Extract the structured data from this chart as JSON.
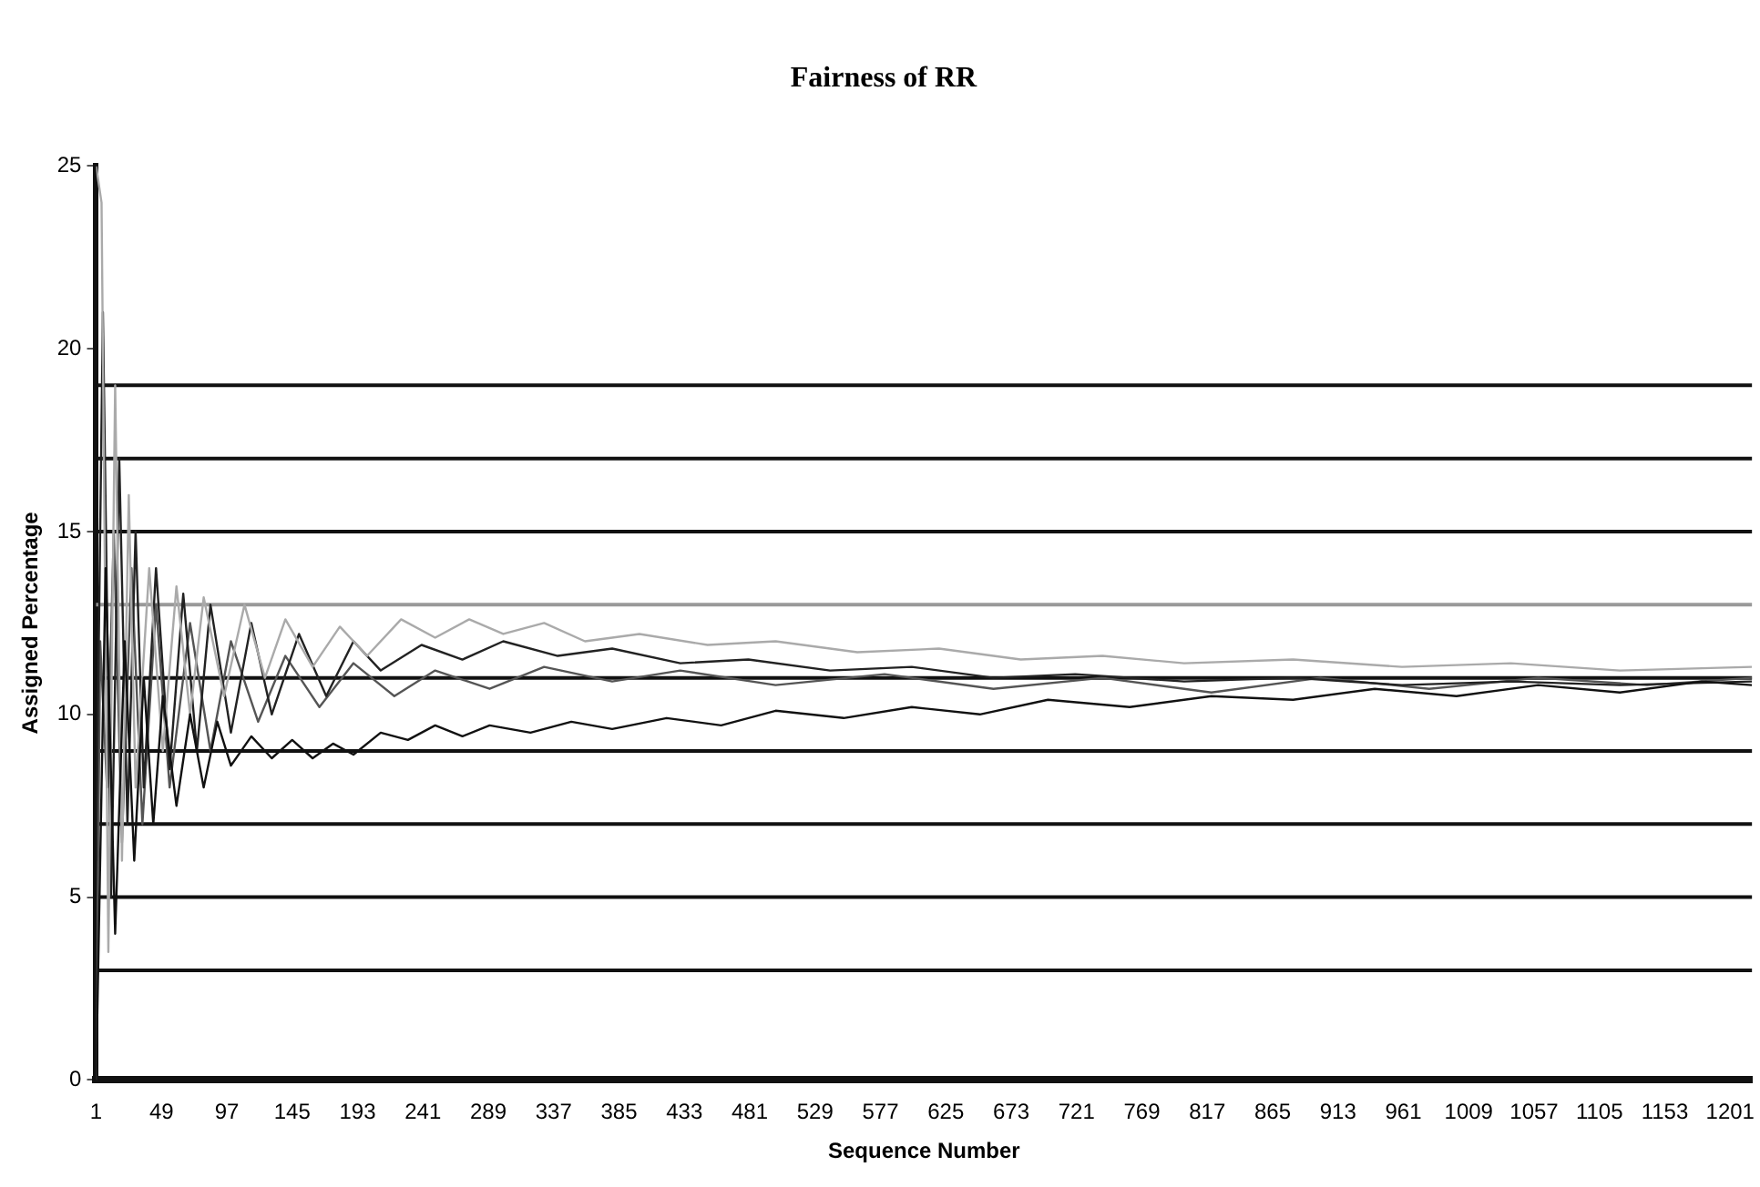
{
  "chart_data": {
    "type": "line",
    "title": "Fairness of RR",
    "xlabel": "Sequence Number",
    "ylabel": "Assigned Percentage",
    "xlim": [
      1,
      1217
    ],
    "xticks": [
      1,
      49,
      97,
      145,
      193,
      241,
      289,
      337,
      385,
      433,
      481,
      529,
      577,
      625,
      673,
      721,
      769,
      817,
      865,
      913,
      961,
      1009,
      1057,
      1105,
      1153,
      1201
    ],
    "ylim": [
      0,
      25
    ],
    "yticks": [
      0,
      5,
      10,
      15,
      20,
      25
    ],
    "grid": false,
    "legend": false,
    "marker": "none",
    "line_style": "solid",
    "ref_lines": [
      {
        "axis": "y",
        "value": 3,
        "color": "#111111"
      },
      {
        "axis": "y",
        "value": 5,
        "color": "#111111"
      },
      {
        "axis": "y",
        "value": 7,
        "color": "#111111"
      },
      {
        "axis": "y",
        "value": 9,
        "color": "#111111"
      },
      {
        "axis": "y",
        "value": 11,
        "color": "#111111"
      },
      {
        "axis": "y",
        "value": 13,
        "color": "#999999"
      },
      {
        "axis": "y",
        "value": 15,
        "color": "#111111"
      },
      {
        "axis": "y",
        "value": 17,
        "color": "#111111"
      },
      {
        "axis": "y",
        "value": 19,
        "color": "#111111"
      }
    ],
    "series": [
      {
        "color": "#111111",
        "x": [
          1,
          8,
          15,
          22,
          29,
          36,
          43,
          50,
          60,
          70,
          80,
          90,
          100,
          115,
          130,
          145,
          160,
          175,
          190,
          210,
          230,
          250,
          270,
          290,
          320,
          350,
          380,
          420,
          460,
          500,
          550,
          600,
          650,
          700,
          760,
          820,
          880,
          940,
          1000,
          1060,
          1120,
          1180,
          1217
        ],
        "values": [
          0,
          14,
          4,
          12,
          6,
          11,
          7,
          10.5,
          7.5,
          10,
          8,
          9.8,
          8.6,
          9.4,
          8.8,
          9.3,
          8.8,
          9.2,
          8.9,
          9.5,
          9.3,
          9.7,
          9.4,
          9.7,
          9.5,
          9.8,
          9.6,
          9.9,
          9.7,
          10.1,
          9.9,
          10.2,
          10.0,
          10.4,
          10.2,
          10.5,
          10.4,
          10.7,
          10.5,
          10.8,
          10.6,
          10.9,
          10.8
        ]
      },
      {
        "color": "#aaaaaa",
        "x": [
          1,
          5,
          10,
          15,
          20,
          25,
          30,
          40,
          50,
          60,
          70,
          80,
          95,
          110,
          125,
          140,
          160,
          180,
          200,
          225,
          250,
          275,
          300,
          330,
          360,
          400,
          450,
          500,
          560,
          620,
          680,
          740,
          800,
          880,
          960,
          1040,
          1120,
          1217
        ],
        "values": [
          25,
          24,
          3.5,
          19,
          6,
          16,
          8,
          14,
          9,
          13.5,
          10,
          13.2,
          10.5,
          13,
          11,
          12.6,
          11.3,
          12.4,
          11.6,
          12.6,
          12.1,
          12.6,
          12.2,
          12.5,
          12.0,
          12.2,
          11.9,
          12.0,
          11.7,
          11.8,
          11.5,
          11.6,
          11.4,
          11.5,
          11.3,
          11.4,
          11.2,
          11.3
        ]
      },
      {
        "color": "#222222",
        "x": [
          1,
          6,
          12,
          18,
          24,
          30,
          36,
          45,
          55,
          65,
          75,
          85,
          100,
          115,
          130,
          150,
          170,
          190,
          210,
          240,
          270,
          300,
          340,
          380,
          430,
          480,
          540,
          600,
          660,
          720,
          800,
          880,
          960,
          1040,
          1120,
          1217
        ],
        "values": [
          6,
          21,
          5,
          17,
          7,
          15,
          8,
          14,
          8.5,
          13.3,
          9,
          13,
          9.5,
          12.5,
          10,
          12.2,
          10.5,
          12,
          11.2,
          11.9,
          11.5,
          12,
          11.6,
          11.8,
          11.4,
          11.5,
          11.2,
          11.3,
          11.0,
          11.1,
          10.9,
          11.0,
          10.8,
          10.9,
          10.8,
          10.9
        ]
      },
      {
        "color": "#555555",
        "x": [
          1,
          4,
          9,
          14,
          20,
          27,
          35,
          45,
          55,
          70,
          85,
          100,
          120,
          140,
          165,
          190,
          220,
          250,
          290,
          330,
          380,
          430,
          500,
          580,
          660,
          740,
          820,
          900,
          980,
          1060,
          1140,
          1217
        ],
        "values": [
          0,
          12,
          8,
          15,
          6.5,
          14,
          7,
          13,
          8,
          12.5,
          9,
          12,
          9.8,
          11.6,
          10.2,
          11.4,
          10.5,
          11.2,
          10.7,
          11.3,
          10.9,
          11.2,
          10.8,
          11.1,
          10.7,
          11.0,
          10.6,
          11.0,
          10.7,
          11.0,
          10.8,
          11.0
        ]
      }
    ]
  }
}
